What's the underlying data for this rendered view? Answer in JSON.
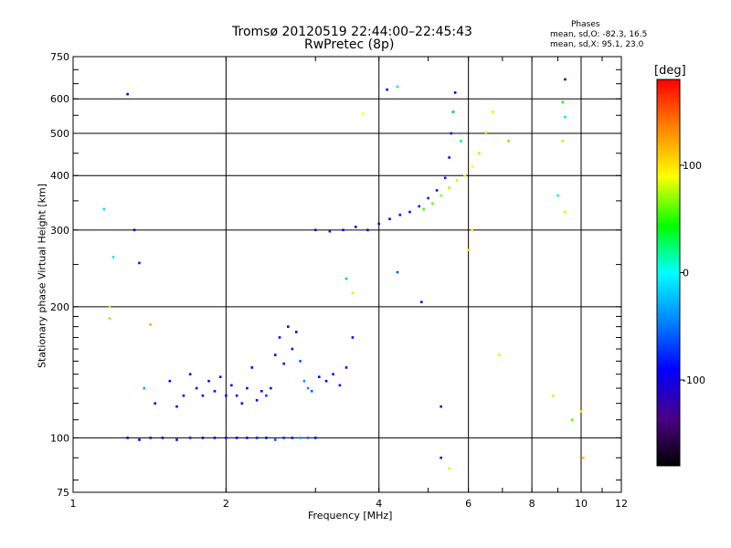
{
  "chart_data": {
    "type": "scatter",
    "title": "Tromsø 20120519 22:44:00–22:45:43",
    "subtitle": "RwPretec (8p)",
    "phases_box": {
      "heading": "Phases",
      "line1": "mean, sd,O: -82.3, 16.5",
      "line2": "mean, sd,X:  95.1, 23.0"
    },
    "xlabel": "Frequency [MHz]",
    "ylabel": "Stationary phase Virtual Height [km]",
    "x_scale": "log",
    "y_scale": "log",
    "xlim": [
      1,
      12
    ],
    "ylim": [
      75,
      750
    ],
    "x_ticks": [
      1,
      2,
      4,
      6,
      8,
      10,
      12
    ],
    "x_tick_labels": [
      "1",
      "2",
      "4",
      "6",
      "8",
      "10",
      "12"
    ],
    "x_gridlines": [
      2,
      4,
      6,
      8,
      10
    ],
    "y_ticks": [
      75,
      100,
      200,
      300,
      400,
      500,
      600,
      750
    ],
    "y_tick_labels": [
      "75",
      "100",
      "200",
      "300",
      "400",
      "500",
      "600",
      "750"
    ],
    "y_gridlines": [
      100,
      200,
      300,
      400,
      500,
      600
    ],
    "grid": true,
    "colorbar": {
      "label": "[deg]",
      "range": [
        -180,
        180
      ],
      "ticks": [
        100,
        0,
        -100
      ],
      "tick_labels": [
        "100",
        "0",
        "-100"
      ],
      "colors": [
        "#000000",
        "#4b0082",
        "#0000ff",
        "#0080ff",
        "#00ffff",
        "#00ff00",
        "#ffff00",
        "#ff8000",
        "#ff0000"
      ]
    },
    "series": [
      {
        "points": [
          [
            1.28,
            100,
            -95
          ],
          [
            1.35,
            99,
            -90
          ],
          [
            1.42,
            100,
            -85
          ],
          [
            1.5,
            100,
            -92
          ],
          [
            1.6,
            99,
            -88
          ],
          [
            1.7,
            100,
            -80
          ],
          [
            1.8,
            100,
            -95
          ],
          [
            1.9,
            100,
            -90
          ],
          [
            2.0,
            100,
            -85
          ],
          [
            2.1,
            100,
            -92
          ],
          [
            2.2,
            100,
            -88
          ],
          [
            2.3,
            100,
            -82
          ],
          [
            2.4,
            100,
            -90
          ],
          [
            2.5,
            99,
            -60
          ],
          [
            2.6,
            100,
            -75
          ],
          [
            2.7,
            100,
            -85
          ],
          [
            2.8,
            100,
            -30
          ],
          [
            2.9,
            100,
            -50
          ],
          [
            3.0,
            100,
            -90
          ],
          [
            1.45,
            120,
            -95
          ],
          [
            1.55,
            135,
            -100
          ],
          [
            1.6,
            118,
            -90
          ],
          [
            1.65,
            125,
            -95
          ],
          [
            1.7,
            140,
            -100
          ],
          [
            1.75,
            130,
            -92
          ],
          [
            1.8,
            125,
            -88
          ],
          [
            1.85,
            135,
            -95
          ],
          [
            1.9,
            128,
            -90
          ],
          [
            1.95,
            138,
            -85
          ],
          [
            2.0,
            125,
            -92
          ],
          [
            2.05,
            132,
            -88
          ],
          [
            2.1,
            125,
            -95
          ],
          [
            2.15,
            120,
            -90
          ],
          [
            2.2,
            130,
            -85
          ],
          [
            2.25,
            145,
            -95
          ],
          [
            2.3,
            122,
            -88
          ],
          [
            2.35,
            128,
            -90
          ],
          [
            2.4,
            125,
            -70
          ],
          [
            2.45,
            130,
            -95
          ],
          [
            2.5,
            155,
            -88
          ],
          [
            2.55,
            170,
            -90
          ],
          [
            2.6,
            148,
            -92
          ],
          [
            2.65,
            180,
            -88
          ],
          [
            2.7,
            160,
            -95
          ],
          [
            2.75,
            175,
            -90
          ],
          [
            2.8,
            150,
            -60
          ],
          [
            2.85,
            135,
            -35
          ],
          [
            2.9,
            130,
            -40
          ],
          [
            2.95,
            128,
            -55
          ],
          [
            3.05,
            138,
            -92
          ],
          [
            3.15,
            135,
            -95
          ],
          [
            3.25,
            140,
            -90
          ],
          [
            3.35,
            132,
            -88
          ],
          [
            3.45,
            145,
            -92
          ],
          [
            3.55,
            170,
            -90
          ],
          [
            3.0,
            300,
            -110
          ],
          [
            3.2,
            298,
            -105
          ],
          [
            3.4,
            300,
            -100
          ],
          [
            3.6,
            305,
            -98
          ],
          [
            3.8,
            300,
            -95
          ],
          [
            4.0,
            310,
            -100
          ],
          [
            4.2,
            318,
            -95
          ],
          [
            4.4,
            325,
            -90
          ],
          [
            4.6,
            330,
            -88
          ],
          [
            4.8,
            340,
            -85
          ],
          [
            5.0,
            355,
            -80
          ],
          [
            5.2,
            370,
            -85
          ],
          [
            5.4,
            395,
            -80
          ],
          [
            5.5,
            440,
            -85
          ],
          [
            5.55,
            500,
            -88
          ],
          [
            5.6,
            560,
            -85
          ],
          [
            5.65,
            620,
            -90
          ],
          [
            4.9,
            335,
            55
          ],
          [
            5.1,
            345,
            60
          ],
          [
            5.3,
            360,
            70
          ],
          [
            5.5,
            375,
            75
          ],
          [
            5.7,
            390,
            80
          ],
          [
            5.9,
            400,
            85
          ],
          [
            6.1,
            420,
            90
          ],
          [
            6.3,
            450,
            75
          ],
          [
            6.5,
            500,
            70
          ],
          [
            6.7,
            560,
            80
          ],
          [
            5.6,
            560,
            40
          ],
          [
            5.8,
            480,
            30
          ],
          [
            1.15,
            335,
            -10
          ],
          [
            1.32,
            300,
            -100
          ],
          [
            1.28,
            615,
            -95
          ],
          [
            1.2,
            260,
            -5
          ],
          [
            1.35,
            252,
            -85
          ],
          [
            1.18,
            200,
            100
          ],
          [
            1.18,
            188,
            70
          ],
          [
            1.42,
            182,
            120
          ],
          [
            1.38,
            130,
            -30
          ],
          [
            3.45,
            232,
            -25
          ],
          [
            3.55,
            215,
            100
          ],
          [
            3.72,
            555,
            90
          ],
          [
            4.35,
            240,
            -60
          ],
          [
            4.35,
            640,
            -10
          ],
          [
            4.15,
            630,
            -90
          ],
          [
            4.85,
            205,
            -95
          ],
          [
            5.3,
            90,
            -100
          ],
          [
            5.5,
            85,
            100
          ],
          [
            5.3,
            118,
            -110
          ],
          [
            6.0,
            270,
            100
          ],
          [
            6.1,
            300,
            95
          ],
          [
            6.9,
            155,
            100
          ],
          [
            7.2,
            480,
            120
          ],
          [
            8.8,
            125,
            80
          ],
          [
            9.0,
            360,
            -5
          ],
          [
            9.3,
            330,
            100
          ],
          [
            9.6,
            110,
            60
          ],
          [
            9.2,
            480,
            75
          ],
          [
            9.2,
            590,
            40
          ],
          [
            9.3,
            665,
            -100
          ],
          [
            9.3,
            545,
            -10
          ],
          [
            10.1,
            90,
            110
          ],
          [
            10.0,
            115,
            100
          ]
        ]
      }
    ]
  }
}
